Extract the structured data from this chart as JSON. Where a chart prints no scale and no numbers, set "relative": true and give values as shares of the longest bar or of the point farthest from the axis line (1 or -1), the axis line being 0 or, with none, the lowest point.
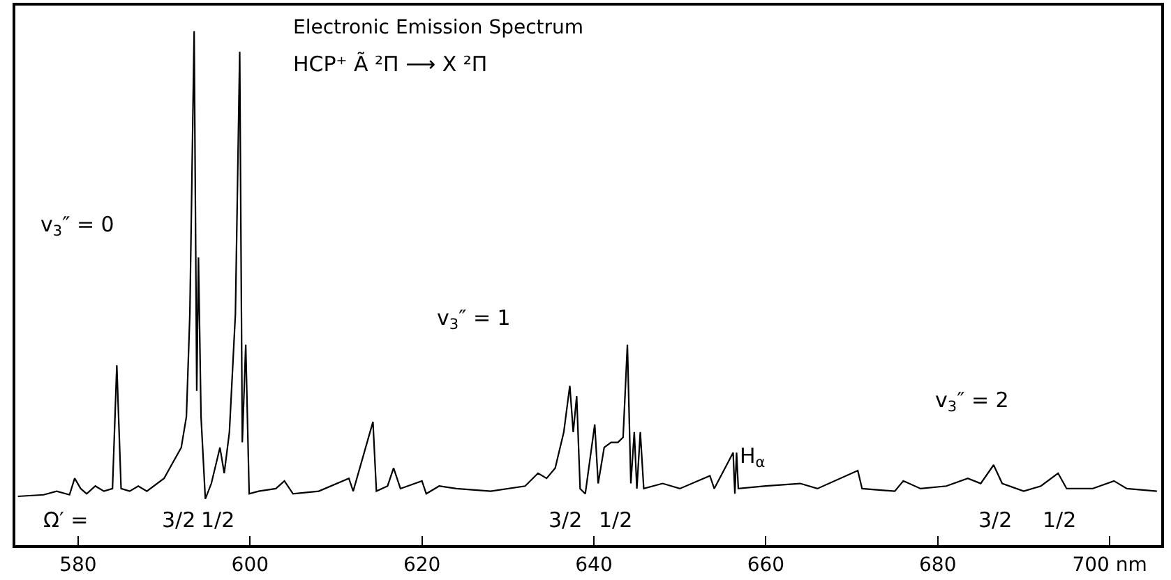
{
  "chart_data": {
    "type": "line",
    "relative": true,
    "title": "Electronic Emission Spectrum",
    "subtitle": "HCP⁺ Ã ²Π ⟶ X ²Π",
    "x": [
      573,
      576,
      577.5,
      579,
      579.6,
      580.3,
      581,
      582,
      583,
      584,
      584.5,
      585,
      586,
      587,
      588,
      590,
      591,
      592,
      592.6,
      593,
      593.5,
      593.8,
      594.0,
      594.3,
      594.8,
      595.5,
      596.5,
      597,
      597.6,
      598.3,
      598.8,
      599.1,
      599.5,
      599.9,
      601,
      603,
      604,
      605,
      608,
      611.5,
      612,
      614.3,
      614.7,
      616,
      616.7,
      617.5,
      620,
      620.5,
      622,
      624,
      628,
      632,
      633.5,
      634.5,
      635.5,
      636.5,
      637.2,
      637.6,
      638,
      638.4,
      639,
      640.1,
      640.5,
      641.2,
      642,
      642.8,
      643.4,
      643.9,
      644.3,
      644.7,
      645,
      645.4,
      645.8,
      648,
      650,
      653.5,
      654,
      656.2,
      656.4,
      656.6,
      656.8,
      660,
      664,
      666,
      670.7,
      671.2,
      675,
      676,
      678,
      681,
      683.5,
      685,
      686.5,
      687.5,
      690,
      692,
      694,
      695,
      698,
      700.5,
      702,
      705.5
    ],
    "series": [
      {
        "color": "#000000",
        "values": [
          0.095,
          0.098,
          0.105,
          0.098,
          0.13,
          0.11,
          0.1,
          0.115,
          0.105,
          0.11,
          0.35,
          0.11,
          0.105,
          0.115,
          0.105,
          0.13,
          0.16,
          0.19,
          0.25,
          0.45,
          1.0,
          0.3,
          0.56,
          0.25,
          0.09,
          0.12,
          0.19,
          0.14,
          0.22,
          0.45,
          0.96,
          0.2,
          0.39,
          0.1,
          0.105,
          0.11,
          0.125,
          0.1,
          0.105,
          0.13,
          0.105,
          0.24,
          0.105,
          0.115,
          0.15,
          0.11,
          0.125,
          0.1,
          0.115,
          0.11,
          0.105,
          0.115,
          0.14,
          0.13,
          0.15,
          0.22,
          0.31,
          0.22,
          0.29,
          0.11,
          0.1,
          0.235,
          0.12,
          0.19,
          0.2,
          0.2,
          0.21,
          0.39,
          0.12,
          0.22,
          0.11,
          0.22,
          0.11,
          0.12,
          0.11,
          0.135,
          0.11,
          0.18,
          0.1,
          0.18,
          0.11,
          0.115,
          0.12,
          0.11,
          0.145,
          0.11,
          0.105,
          0.125,
          0.11,
          0.115,
          0.13,
          0.12,
          0.156,
          0.12,
          0.105,
          0.115,
          0.14,
          0.11,
          0.11,
          0.125,
          0.11,
          0.105
        ]
      }
    ],
    "xlim": [
      572.7,
      706
    ],
    "xticks": [
      580,
      600,
      620,
      640,
      660,
      680,
      {
        "value": 700,
        "label": "700 nm"
      }
    ],
    "tick_labels": "x",
    "annotations": [
      "v$_{3}$″ = 0",
      "v$_{3}$″ = 1",
      "v$_{3}$″ = 2",
      "Ω′ =",
      "3/2",
      "1/2",
      "3/2",
      "1/2",
      "3/2",
      "1/2",
      "H$_{α}$"
    ]
  }
}
